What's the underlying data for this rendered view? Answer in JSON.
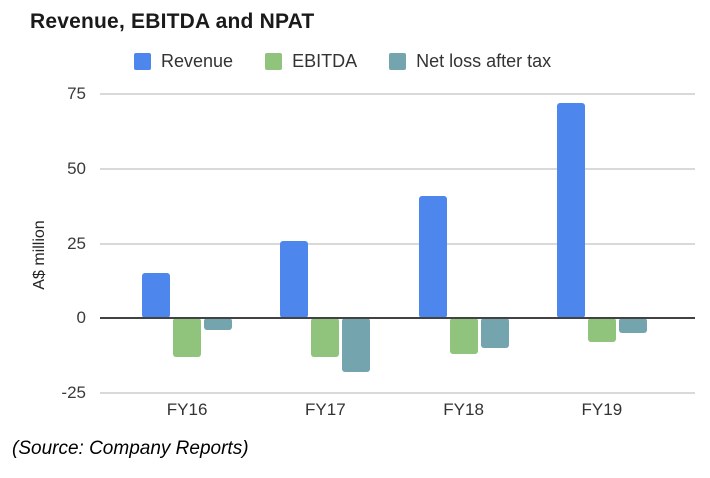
{
  "title": "Revenue, EBITDA and NPAT",
  "source_note": "(Source: Company Reports)",
  "colors": {
    "revenue": "#4D86EC",
    "ebitda": "#90C47D",
    "net_loss_after_tax": "#74A4AE",
    "gridline": "#D9D9D9",
    "zero_line": "#424242",
    "background": "#FFFFFF"
  },
  "chart_data": {
    "type": "bar",
    "title": "Revenue, EBITDA and NPAT",
    "categories": [
      "FY16",
      "FY17",
      "FY18",
      "FY19"
    ],
    "series": [
      {
        "name": "Revenue",
        "color": "#4D86EC",
        "values": [
          15,
          26,
          41,
          72
        ]
      },
      {
        "name": "EBITDA",
        "color": "#90C47D",
        "values": [
          -13,
          -13,
          -12,
          -8
        ]
      },
      {
        "name": "Net loss after tax",
        "color": "#74A4AE",
        "values": [
          -4,
          -18,
          -10,
          -5
        ]
      }
    ],
    "xlabel": "",
    "ylabel": "A$ million",
    "ylim": [
      -25,
      75
    ],
    "yticks": [
      75,
      50,
      25,
      0,
      -25
    ],
    "grid": true,
    "legend_position": "top"
  }
}
